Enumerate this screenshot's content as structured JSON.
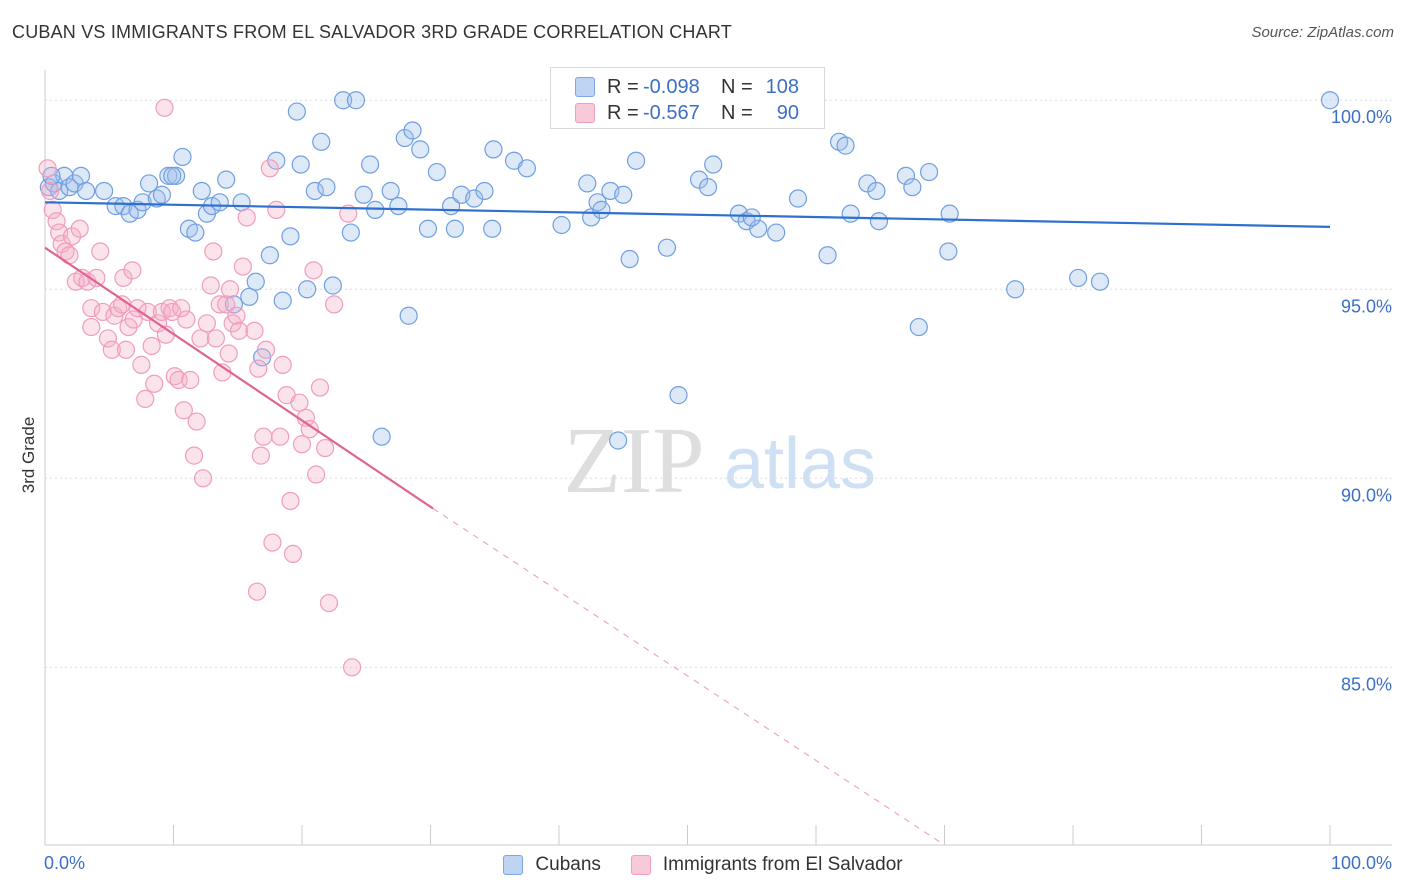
{
  "title": "CUBAN VS IMMIGRANTS FROM EL SALVADOR 3RD GRADE CORRELATION CHART",
  "source": "Source: ZipAtlas.com",
  "watermark": {
    "zip": "ZIP",
    "atlas": "atlas"
  },
  "stats": [
    {
      "r_label": "R =",
      "r_value": "-0.098",
      "n_label": "N =",
      "n_value": "108"
    },
    {
      "r_label": "R =",
      "r_value": "-0.567",
      "n_label": "N =",
      "n_value": "90"
    }
  ],
  "chart_data": {
    "type": "scatter",
    "title": "CUBAN VS IMMIGRANTS FROM EL SALVADOR 3RD GRADE CORRELATION CHART",
    "xlabel": "",
    "ylabel": "3rd Grade",
    "xlim": [
      0,
      100
    ],
    "ylim": [
      80.3,
      100.8
    ],
    "x_tick_labels": [
      "0.0%",
      "100.0%"
    ],
    "y_ticks": [
      85,
      90,
      95,
      100
    ],
    "y_tick_labels": [
      "85.0%",
      "90.0%",
      "95.0%",
      "100.0%"
    ],
    "grid": "horizontal dashed",
    "legend": "bottom",
    "series": [
      {
        "name": "Cubans",
        "color": "#6f9fe0",
        "trend": {
          "x": [
            0,
            100
          ],
          "y": [
            97.3,
            96.65
          ],
          "color": "#2e6fd0"
        },
        "points": [
          [
            0.3,
            97.7
          ],
          [
            0.7,
            97.8
          ],
          [
            1.1,
            97.6
          ],
          [
            1.5,
            98.0
          ],
          [
            1.9,
            97.7
          ],
          [
            2.3,
            97.8
          ],
          [
            2.8,
            98.0
          ],
          [
            3.2,
            97.6
          ],
          [
            4.6,
            97.6
          ],
          [
            5.5,
            97.2
          ],
          [
            6.1,
            97.2
          ],
          [
            6.6,
            97.0
          ],
          [
            7.2,
            97.1
          ],
          [
            7.6,
            97.3
          ],
          [
            8.1,
            97.8
          ],
          [
            8.7,
            97.4
          ],
          [
            9.1,
            97.5
          ],
          [
            9.6,
            98.0
          ],
          [
            10.2,
            98.0
          ],
          [
            10.7,
            98.5
          ],
          [
            11.2,
            96.6
          ],
          [
            11.7,
            96.5
          ],
          [
            12.2,
            97.6
          ],
          [
            12.6,
            97.0
          ],
          [
            13.0,
            97.2
          ],
          [
            13.6,
            97.3
          ],
          [
            14.1,
            97.9
          ],
          [
            14.7,
            94.6
          ],
          [
            15.3,
            97.3
          ],
          [
            15.9,
            94.8
          ],
          [
            16.4,
            95.2
          ],
          [
            16.9,
            93.2
          ],
          [
            17.5,
            95.9
          ],
          [
            18.0,
            98.4
          ],
          [
            18.5,
            94.7
          ],
          [
            19.1,
            96.4
          ],
          [
            19.6,
            99.7
          ],
          [
            19.9,
            98.3
          ],
          [
            20.4,
            95.0
          ],
          [
            21.0,
            97.6
          ],
          [
            21.5,
            98.9
          ],
          [
            21.9,
            97.7
          ],
          [
            22.4,
            95.1
          ],
          [
            23.2,
            100.0
          ],
          [
            23.8,
            96.5
          ],
          [
            24.2,
            100.0
          ],
          [
            24.8,
            97.5
          ],
          [
            25.3,
            98.3
          ],
          [
            25.7,
            97.1
          ],
          [
            26.2,
            91.1
          ],
          [
            26.9,
            97.6
          ],
          [
            27.5,
            97.2
          ],
          [
            28.0,
            99.0
          ],
          [
            28.3,
            94.3
          ],
          [
            28.6,
            99.2
          ],
          [
            29.2,
            98.7
          ],
          [
            29.8,
            96.6
          ],
          [
            30.5,
            98.1
          ],
          [
            31.6,
            97.2
          ],
          [
            31.9,
            96.6
          ],
          [
            32.4,
            97.5
          ],
          [
            33.4,
            97.4
          ],
          [
            34.2,
            97.6
          ],
          [
            34.8,
            96.6
          ],
          [
            34.9,
            98.7
          ],
          [
            36.5,
            98.4
          ],
          [
            37.5,
            98.2
          ],
          [
            40.2,
            96.7
          ],
          [
            42.2,
            97.8
          ],
          [
            42.5,
            96.9
          ],
          [
            43.0,
            97.3
          ],
          [
            43.3,
            97.1
          ],
          [
            44.0,
            97.6
          ],
          [
            44.6,
            91.0
          ],
          [
            45.0,
            97.5
          ],
          [
            45.5,
            95.8
          ],
          [
            46.0,
            98.4
          ],
          [
            48.4,
            96.1
          ],
          [
            49.3,
            92.2
          ],
          [
            50.9,
            97.9
          ],
          [
            51.6,
            97.7
          ],
          [
            52.0,
            98.3
          ],
          [
            54.0,
            97.0
          ],
          [
            54.6,
            96.8
          ],
          [
            55.5,
            96.6
          ],
          [
            56.9,
            96.5
          ],
          [
            58.6,
            97.4
          ],
          [
            60.9,
            95.9
          ],
          [
            61.8,
            98.9
          ],
          [
            62.3,
            98.8
          ],
          [
            62.7,
            97.0
          ],
          [
            64.0,
            97.8
          ],
          [
            64.7,
            97.6
          ],
          [
            64.9,
            96.8
          ],
          [
            67.0,
            98.0
          ],
          [
            67.5,
            97.7
          ],
          [
            68.0,
            94.0
          ],
          [
            68.8,
            98.1
          ],
          [
            70.3,
            96.0
          ],
          [
            70.4,
            97.0
          ],
          [
            75.5,
            95.0
          ],
          [
            80.4,
            95.3
          ],
          [
            82.1,
            95.2
          ],
          [
            100.0,
            100.0
          ],
          [
            0.5,
            98.0
          ],
          [
            9.9,
            98.0
          ],
          [
            55.0,
            96.9
          ]
        ]
      },
      {
        "name": "Immigrants from El Salvador",
        "color": "#f19cba",
        "trend": {
          "x": [
            0,
            30.2
          ],
          "y": [
            96.1,
            89.2
          ],
          "color": "#e06391"
        },
        "trend_extension": {
          "x": [
            30.2,
            70.0
          ],
          "y": [
            89.2,
            80.3
          ]
        },
        "points": [
          [
            0.2,
            98.2
          ],
          [
            0.4,
            97.6
          ],
          [
            0.6,
            97.1
          ],
          [
            0.9,
            96.8
          ],
          [
            1.1,
            96.5
          ],
          [
            1.3,
            96.2
          ],
          [
            1.6,
            96.0
          ],
          [
            1.9,
            95.9
          ],
          [
            2.1,
            96.4
          ],
          [
            2.4,
            95.2
          ],
          [
            2.7,
            96.6
          ],
          [
            2.9,
            95.3
          ],
          [
            3.3,
            95.2
          ],
          [
            3.6,
            94.5
          ],
          [
            4.0,
            95.3
          ],
          [
            4.3,
            96.0
          ],
          [
            4.5,
            94.4
          ],
          [
            4.9,
            93.7
          ],
          [
            5.2,
            93.4
          ],
          [
            5.4,
            94.3
          ],
          [
            5.7,
            94.5
          ],
          [
            6.1,
            95.3
          ],
          [
            6.3,
            93.4
          ],
          [
            6.5,
            94.0
          ],
          [
            6.8,
            95.5
          ],
          [
            6.9,
            94.2
          ],
          [
            7.2,
            94.5
          ],
          [
            7.5,
            93.0
          ],
          [
            7.8,
            92.1
          ],
          [
            8.0,
            94.4
          ],
          [
            8.3,
            93.5
          ],
          [
            8.5,
            92.5
          ],
          [
            8.8,
            94.1
          ],
          [
            9.1,
            94.4
          ],
          [
            9.4,
            93.8
          ],
          [
            9.7,
            94.5
          ],
          [
            9.9,
            94.4
          ],
          [
            10.1,
            92.7
          ],
          [
            10.4,
            92.6
          ],
          [
            10.8,
            91.8
          ],
          [
            11.0,
            94.2
          ],
          [
            11.3,
            92.6
          ],
          [
            11.6,
            90.6
          ],
          [
            11.8,
            91.5
          ],
          [
            12.1,
            93.7
          ],
          [
            12.3,
            90.0
          ],
          [
            12.6,
            94.1
          ],
          [
            12.9,
            95.1
          ],
          [
            13.1,
            96.0
          ],
          [
            13.3,
            93.7
          ],
          [
            13.6,
            94.6
          ],
          [
            13.8,
            92.8
          ],
          [
            14.1,
            94.6
          ],
          [
            14.4,
            95.0
          ],
          [
            14.6,
            94.1
          ],
          [
            14.9,
            94.3
          ],
          [
            15.1,
            93.9
          ],
          [
            15.4,
            95.6
          ],
          [
            15.7,
            96.9
          ],
          [
            16.3,
            93.9
          ],
          [
            16.5,
            87.0
          ],
          [
            16.6,
            92.9
          ],
          [
            16.8,
            90.6
          ],
          [
            17.0,
            91.1
          ],
          [
            17.2,
            93.4
          ],
          [
            17.5,
            98.2
          ],
          [
            17.7,
            88.3
          ],
          [
            18.0,
            97.1
          ],
          [
            18.3,
            91.1
          ],
          [
            18.5,
            93.0
          ],
          [
            18.8,
            92.2
          ],
          [
            19.1,
            89.4
          ],
          [
            19.3,
            88.0
          ],
          [
            19.8,
            92.0
          ],
          [
            20.0,
            90.9
          ],
          [
            20.3,
            91.6
          ],
          [
            20.6,
            91.3
          ],
          [
            20.9,
            95.5
          ],
          [
            21.1,
            90.1
          ],
          [
            21.4,
            92.4
          ],
          [
            21.8,
            90.8
          ],
          [
            22.1,
            86.7
          ],
          [
            22.5,
            94.6
          ],
          [
            23.6,
            97.0
          ],
          [
            23.9,
            85.0
          ],
          [
            9.3,
            99.8
          ],
          [
            3.6,
            94.0
          ],
          [
            6.0,
            94.6
          ],
          [
            10.6,
            94.5
          ],
          [
            14.3,
            93.3
          ]
        ]
      }
    ]
  }
}
